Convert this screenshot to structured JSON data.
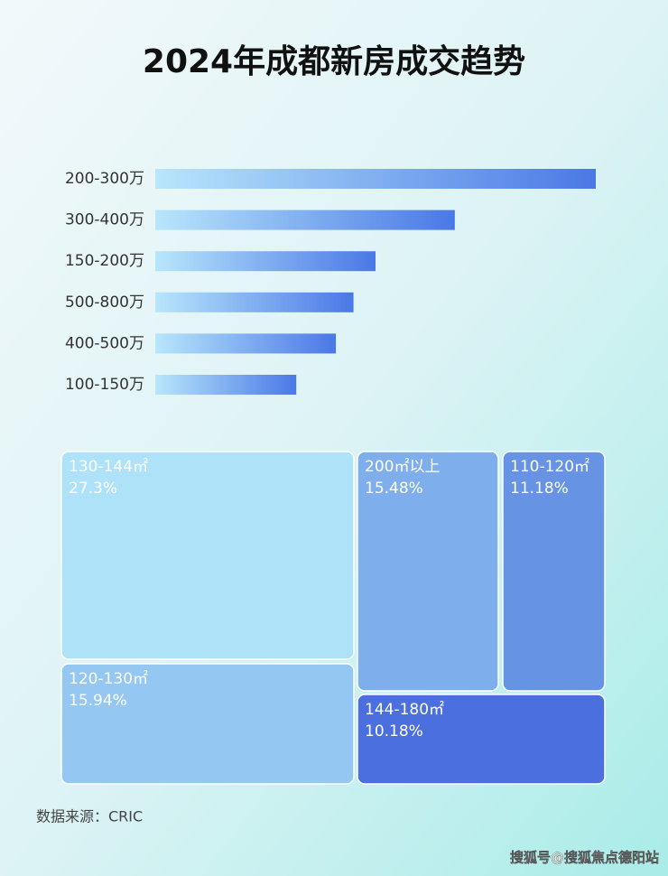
{
  "chart_data": [
    {
      "type": "bar",
      "orientation": "horizontal",
      "title": "2024年成都新房成交趋势",
      "categories": [
        "200-300万",
        "300-400万",
        "150-200万",
        "500-800万",
        "400-500万",
        "100-150万"
      ],
      "values": [
        100,
        68,
        50,
        45,
        41,
        32
      ],
      "color": "#4a78e6"
    },
    {
      "type": "treemap",
      "categories": [
        "130-144㎡",
        "200㎡以上",
        "110-120㎡",
        "120-130㎡",
        "144-180㎡"
      ],
      "values": [
        27.3,
        15.48,
        11.18,
        15.94,
        10.18
      ],
      "value_labels": [
        "27.3%",
        "15.48%",
        "11.18%",
        "15.94%",
        "10.18%"
      ],
      "colors": [
        "#aee2f9",
        "#7eafec",
        "#6693e4",
        "#94c7f2",
        "#4c6fe0"
      ],
      "source": "数据来源：CRIC"
    }
  ],
  "watermark": "搜狐号@搜狐焦点德阳站"
}
